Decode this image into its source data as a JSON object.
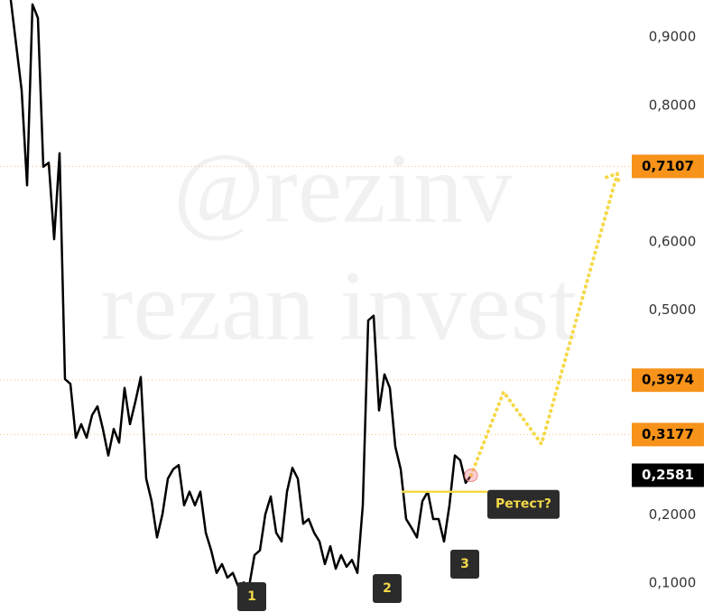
{
  "chart_data": {
    "type": "line",
    "watermark": [
      "@rezinv",
      "rezan invest"
    ],
    "ylim": [
      0.0577,
      0.9545
    ],
    "xlim": [
      -2,
      113
    ],
    "yticks": [
      {
        "value": 0.9,
        "label": "0,9000"
      },
      {
        "value": 0.8,
        "label": "0,8000"
      },
      {
        "value": 0.6,
        "label": "0,6000"
      },
      {
        "value": 0.5,
        "label": "0,5000"
      },
      {
        "value": 0.2,
        "label": "0,2000"
      },
      {
        "value": 0.1,
        "label": "0,1000"
      }
    ],
    "grid": false,
    "series": [
      {
        "color": "#000000",
        "style": "solid",
        "values": [
          0.954,
          0.888,
          0.822,
          0.683,
          0.948,
          0.928,
          0.71,
          0.716,
          0.604,
          0.73,
          0.399,
          0.392,
          0.313,
          0.333,
          0.313,
          0.346,
          0.359,
          0.326,
          0.287,
          0.326,
          0.306,
          0.386,
          0.333,
          0.366,
          0.402,
          0.253,
          0.22,
          0.167,
          0.201,
          0.253,
          0.267,
          0.273,
          0.214,
          0.234,
          0.214,
          0.234,
          0.174,
          0.148,
          0.115,
          0.128,
          0.108,
          0.115,
          0.095,
          0.101,
          0.095,
          0.141,
          0.148,
          0.201,
          0.227,
          0.174,
          0.161,
          0.234,
          0.269,
          0.253,
          0.187,
          0.194,
          0.174,
          0.161,
          0.128,
          0.154,
          0.121,
          0.141,
          0.124,
          0.134,
          0.115,
          0.214,
          0.485,
          0.492,
          0.353,
          0.406,
          0.386,
          0.3,
          0.267,
          0.194,
          0.181,
          0.167,
          0.22,
          0.234,
          0.194,
          0.194,
          0.161,
          0.214,
          0.287,
          0.28,
          0.247,
          0.258
        ]
      },
      {
        "color": "#f5d94a",
        "style": "dotted",
        "x": [
          85,
          91,
          98,
          112
        ],
        "values": [
          0.258,
          0.38,
          0.304,
          0.7
        ]
      }
    ],
    "levels": [
      {
        "value": 0.7107,
        "label": "0,7107",
        "color": "#f7931a"
      },
      {
        "value": 0.3974,
        "label": "0,3974",
        "color": "#f7931a"
      },
      {
        "value": 0.3177,
        "label": "0,3177",
        "color": "#f7931a"
      }
    ],
    "current": {
      "value": 0.2581,
      "label": "0,2581",
      "color": "#000000"
    },
    "retest": {
      "value": 0.234,
      "label": "Ретест?",
      "color": "#f5d94a"
    },
    "markers": [
      "1",
      "2",
      "3"
    ]
  }
}
